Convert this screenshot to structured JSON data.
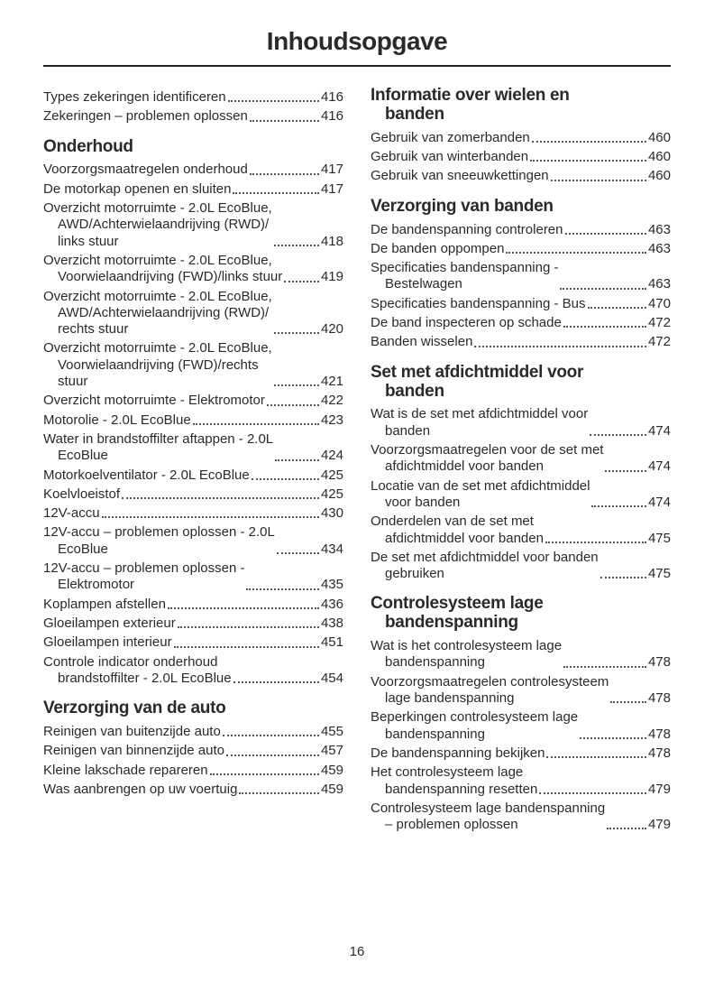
{
  "page_title": "Inhoudsopgave",
  "page_number": "16",
  "left": {
    "intro": [
      {
        "title": "Types zekeringen identificeren",
        "page": "416"
      },
      {
        "title": "Zekeringen – problemen oplossen",
        "page": "416"
      }
    ],
    "onderhoud_heading": "Onderhoud",
    "onderhoud": [
      {
        "title": "Voorzorgsmaatregelen onderhoud",
        "page": "417"
      },
      {
        "title": "De motorkap openen en sluiten",
        "page": "417"
      },
      {
        "title": "Overzicht motorruimte - 2.0L EcoBlue, AWD/Achterwielaandrijving (RWD)/links stuur",
        "page": "418",
        "lines": [
          "Overzicht motorruimte - 2.0L EcoBlue,",
          "AWD/Achterwielaandrijving (RWD)/",
          "links stuur"
        ]
      },
      {
        "title": "Overzicht motorruimte - 2.0L EcoBlue, Voorwielaandrijving (FWD)/links stuur",
        "page": "419",
        "lines": [
          "Overzicht motorruimte - 2.0L EcoBlue,",
          "Voorwielaandrijving (FWD)/links stuur",
          ""
        ]
      },
      {
        "title": "Overzicht motorruimte - 2.0L EcoBlue, AWD/Achterwielaandrijving (RWD)/rechts stuur",
        "page": "420",
        "lines": [
          "Overzicht motorruimte - 2.0L EcoBlue,",
          "AWD/Achterwielaandrijving (RWD)/",
          "rechts stuur"
        ]
      },
      {
        "title": "Overzicht motorruimte - 2.0L EcoBlue, Voorwielaandrijving (FWD)/rechts stuur",
        "page": "421",
        "lines": [
          "Overzicht motorruimte - 2.0L EcoBlue,",
          "Voorwielaandrijving (FWD)/rechts",
          "stuur"
        ]
      },
      {
        "title": "Overzicht motorruimte - Elektromotor",
        "page": "422",
        "lines": [
          "Overzicht motorruimte - Elektromotor",
          ""
        ]
      },
      {
        "title": "Motorolie - 2.0L EcoBlue",
        "page": "423"
      },
      {
        "title": "Water in brandstoffilter aftappen - 2.0L EcoBlue",
        "page": "424",
        "lines": [
          "Water in brandstoffilter aftappen - 2.0L",
          "EcoBlue"
        ]
      },
      {
        "title": "Motorkoelventilator - 2.0L EcoBlue",
        "page": "425"
      },
      {
        "title": "Koelvloeistof",
        "page": "425"
      },
      {
        "title": "12V-accu",
        "page": "430"
      },
      {
        "title": "12V-accu – problemen oplossen - 2.0L EcoBlue",
        "page": "434",
        "lines": [
          "12V-accu – problemen oplossen - 2.0L",
          "EcoBlue"
        ]
      },
      {
        "title": "12V-accu – problemen oplossen - Elektromotor",
        "page": "435",
        "lines": [
          "12V-accu – problemen oplossen -",
          "Elektromotor"
        ]
      },
      {
        "title": "Koplampen afstellen",
        "page": "436"
      },
      {
        "title": "Gloeilampen exterieur",
        "page": "438"
      },
      {
        "title": "Gloeilampen interieur",
        "page": "451"
      },
      {
        "title": "Controle indicator onderhoud brandstoffilter - 2.0L EcoBlue",
        "page": "454",
        "lines": [
          "Controle indicator onderhoud",
          "brandstoffilter - 2.0L EcoBlue"
        ]
      }
    ],
    "verzorging_auto_heading": "Verzorging van de auto",
    "verzorging_auto": [
      {
        "title": "Reinigen van buitenzijde auto",
        "page": "455"
      },
      {
        "title": "Reinigen van binnenzijde auto",
        "page": "457"
      },
      {
        "title": "Kleine lakschade repareren",
        "page": "459"
      },
      {
        "title": "Was aanbrengen op uw voertuig",
        "page": "459"
      }
    ]
  },
  "right": {
    "wielen_heading": [
      "Informatie over wielen en",
      "banden"
    ],
    "wielen": [
      {
        "title": "Gebruik van zomerbanden",
        "page": "460"
      },
      {
        "title": "Gebruik van winterbanden",
        "page": "460"
      },
      {
        "title": "Gebruik van sneeuwkettingen",
        "page": "460"
      }
    ],
    "verzorging_banden_heading": "Verzorging van banden",
    "verzorging_banden": [
      {
        "title": "De bandenspanning controleren",
        "page": "463"
      },
      {
        "title": "De banden oppompen",
        "page": "463"
      },
      {
        "title": "Specificaties bandenspanning - Bestelwagen",
        "page": "463",
        "lines": [
          "Specificaties bandenspanning -",
          "Bestelwagen"
        ]
      },
      {
        "title": "Specificaties bandenspanning - Bus",
        "page": "470",
        "lines": [
          "Specificaties bandenspanning - Bus",
          ""
        ]
      },
      {
        "title": "De band inspecteren op schade",
        "page": "472"
      },
      {
        "title": "Banden wisselen",
        "page": "472"
      }
    ],
    "afdicht_heading": [
      "Set met afdichtmiddel voor",
      "banden"
    ],
    "afdicht": [
      {
        "title": "Wat is de set met afdichtmiddel voor banden",
        "page": "474",
        "lines": [
          "Wat is de set met afdichtmiddel voor",
          "banden"
        ]
      },
      {
        "title": "Voorzorgsmaatregelen voor de set met afdichtmiddel voor banden",
        "page": "474",
        "lines": [
          "Voorzorgsmaatregelen voor de set met",
          "afdichtmiddel voor banden"
        ]
      },
      {
        "title": "Locatie van de set met afdichtmiddel voor banden",
        "page": "474",
        "lines": [
          "Locatie van de set met afdichtmiddel",
          "voor banden"
        ]
      },
      {
        "title": "Onderdelen van de set met afdichtmiddel voor banden",
        "page": "475",
        "lines": [
          "Onderdelen van de set met",
          "afdichtmiddel voor banden"
        ]
      },
      {
        "title": "De set met afdichtmiddel voor banden gebruiken",
        "page": "475",
        "lines": [
          "De set met afdichtmiddel voor banden",
          "gebruiken"
        ]
      }
    ],
    "tpms_heading": [
      "Controlesysteem lage",
      "bandenspanning"
    ],
    "tpms": [
      {
        "title": "Wat is het controlesysteem lage bandenspanning",
        "page": "478",
        "lines": [
          "Wat is het controlesysteem lage",
          "bandenspanning"
        ]
      },
      {
        "title": "Voorzorgsmaatregelen controlesysteem lage bandenspanning",
        "page": "478",
        "lines": [
          "Voorzorgsmaatregelen controlesysteem",
          "lage bandenspanning"
        ]
      },
      {
        "title": "Beperkingen controlesysteem lage bandenspanning",
        "page": "478",
        "lines": [
          "Beperkingen controlesysteem lage",
          "bandenspanning"
        ]
      },
      {
        "title": "De bandenspanning bekijken",
        "page": "478"
      },
      {
        "title": "Het controlesysteem lage bandenspanning resetten",
        "page": "479",
        "lines": [
          "Het controlesysteem lage",
          "bandenspanning resetten"
        ]
      },
      {
        "title": "Controlesysteem lage bandenspanning – problemen oplossen",
        "page": "479",
        "lines": [
          "Controlesysteem lage bandenspanning",
          "– problemen oplossen"
        ]
      }
    ]
  }
}
